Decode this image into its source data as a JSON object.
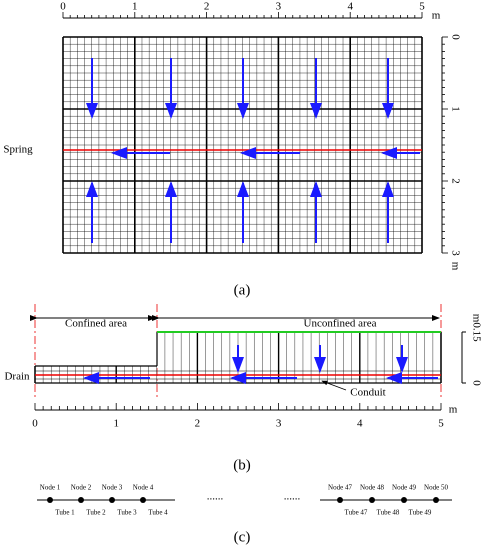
{
  "panel_a": {
    "label": "(a)",
    "x_ticks": [
      "0",
      "1",
      "2",
      "3",
      "4",
      "5"
    ],
    "x_unit": "m",
    "y_ticks": [
      "0",
      "1",
      "2",
      "3"
    ],
    "y_unit": "m",
    "spring": "Spring"
  },
  "panel_b": {
    "label": "(b)",
    "confined": "Confined area",
    "unconfined": "Unconfined area",
    "drain": "Drain",
    "conduit": "Conduit",
    "y_ticks": [
      "0.15",
      "0"
    ],
    "y_unit": "m",
    "x_ticks": [
      "0",
      "1",
      "2",
      "3",
      "4",
      "5"
    ],
    "x_unit": "m"
  },
  "panel_c": {
    "label": "(c)",
    "nodes_left": [
      "Node 1",
      "Node 2",
      "Node 3",
      "Node 4"
    ],
    "tubes_left": [
      "Tube 1",
      "Tube 2",
      "Tube 3",
      "Tube 4"
    ],
    "ellipsis": "......",
    "nodes_right": [
      "Node 47",
      "Node 48",
      "Node 49",
      "Node 50"
    ],
    "tubes_right": [
      "Tube 47",
      "Tube 48",
      "Tube 49"
    ]
  }
}
